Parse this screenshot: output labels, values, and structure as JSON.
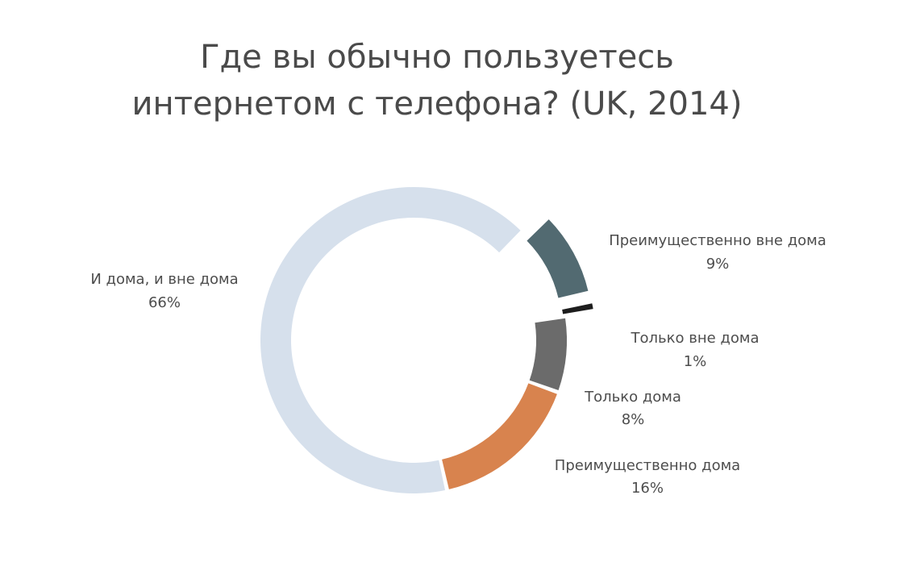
{
  "chart_data": {
    "type": "pie",
    "title_lines": [
      "Где вы обычно пользуетесь",
      "интернетом с телефона? (UK, 2014)"
    ],
    "slices": [
      {
        "name": "Преимущественно вне дома",
        "value": 9,
        "label": "9%",
        "color": "#526a71"
      },
      {
        "name": "Только вне дома",
        "value": 1,
        "label": "1%",
        "color": "#1d1d1d"
      },
      {
        "name": "Только дома",
        "value": 8,
        "label": "8%",
        "color": "#6b6b6b"
      },
      {
        "name": "Преимущественно дома",
        "value": 16,
        "label": "16%",
        "color": "#d8834e"
      },
      {
        "name": "И дома, и вне дома",
        "value": 66,
        "label": "66%",
        "color": "#d6e0ec"
      }
    ]
  }
}
